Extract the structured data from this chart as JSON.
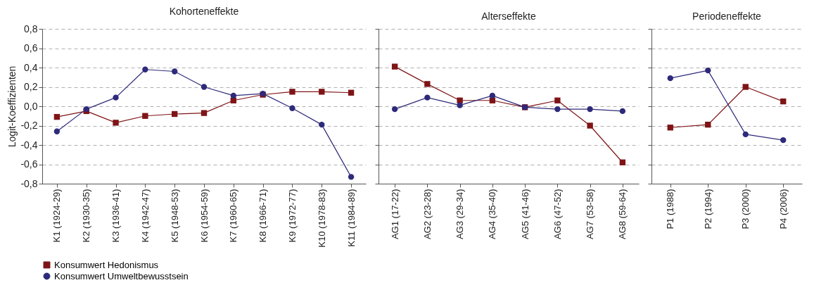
{
  "chart_data": [
    {
      "type": "line",
      "title": "Kohorteneffekte",
      "ylabel": "Logit-Koeffizienten",
      "categories": [
        "K1 (1924-29)",
        "K2 (1930-35)",
        "K3 (1936-41)",
        "K4 (1942-47)",
        "K5 (1948-53)",
        "K6 (1954-59)",
        "K7 (1960-65)",
        "K8 (1966-71)",
        "K9 (1972-77)",
        "K10 (1978-83)",
        "K11 (1984-89)"
      ],
      "series": [
        {
          "name": "Konsumwert Hedonismus",
          "color": "#7f1416",
          "marker": "square",
          "values": [
            -0.11,
            -0.05,
            -0.17,
            -0.1,
            -0.08,
            -0.07,
            0.06,
            0.12,
            0.15,
            0.15,
            0.14
          ]
        },
        {
          "name": "Konsumwert Umweltbewusstsein",
          "color": "#2e2a7a",
          "marker": "circle",
          "values": [
            -0.26,
            -0.03,
            0.09,
            0.38,
            0.36,
            0.2,
            0.11,
            0.13,
            -0.02,
            -0.19,
            -0.73
          ]
        }
      ],
      "ylim": [
        -0.8,
        0.8
      ],
      "yticks": [
        {
          "value": -0.8,
          "label": "-0,8"
        },
        {
          "value": -0.6,
          "label": "-0,6"
        },
        {
          "value": -0.4,
          "label": "-0,4"
        },
        {
          "value": -0.2,
          "label": "-0,2"
        },
        {
          "value": 0,
          "label": "0,0"
        },
        {
          "value": 0.2,
          "label": "0,2"
        },
        {
          "value": 0.4,
          "label": "0,4"
        },
        {
          "value": 0.6,
          "label": "0,6"
        },
        {
          "value": 0.8,
          "label": "0,8"
        }
      ],
      "grid": "y",
      "legend": "bottom"
    },
    {
      "type": "line",
      "title": "Alterseffekte",
      "categories": [
        "AG1 (17-22)",
        "AG2 (23-28)",
        "AG3 (29-34)",
        "AG4 (35-40)",
        "AG5 (41-46)",
        "AG6 (47-52)",
        "AG7 (53-58)",
        "AG8 (59-64)"
      ],
      "series": [
        {
          "color": "#7f1416",
          "marker": "square",
          "values": [
            0.41,
            0.23,
            0.06,
            0.06,
            -0.01,
            0.06,
            -0.2,
            -0.58
          ]
        },
        {
          "color": "#2e2a7a",
          "marker": "circle",
          "values": [
            -0.03,
            0.09,
            0.01,
            0.11,
            -0.01,
            -0.03,
            -0.03,
            -0.05
          ]
        }
      ],
      "ylim": [
        -0.8,
        0.8
      ],
      "yticks": [
        -0.8,
        -0.6,
        -0.4,
        -0.2,
        0,
        0.2,
        0.4,
        0.6,
        0.8
      ],
      "grid": "y",
      "tick_labels": "x"
    },
    {
      "type": "line",
      "title": "Periodeneffekte",
      "categories": [
        "P1 (1988)",
        "P2 (1994)",
        "P3 (2000)",
        "P4 (2006)"
      ],
      "series": [
        {
          "color": "#7f1416",
          "marker": "square",
          "values": [
            -0.22,
            -0.19,
            0.2,
            0.05
          ]
        },
        {
          "color": "#2e2a7a",
          "marker": "circle",
          "values": [
            0.29,
            0.37,
            -0.29,
            -0.35
          ]
        }
      ],
      "ylim": [
        -0.8,
        0.8
      ],
      "yticks": [
        -0.8,
        -0.6,
        -0.4,
        -0.2,
        0,
        0.2,
        0.4,
        0.6,
        0.8
      ],
      "grid": "y",
      "tick_labels": "x"
    }
  ]
}
